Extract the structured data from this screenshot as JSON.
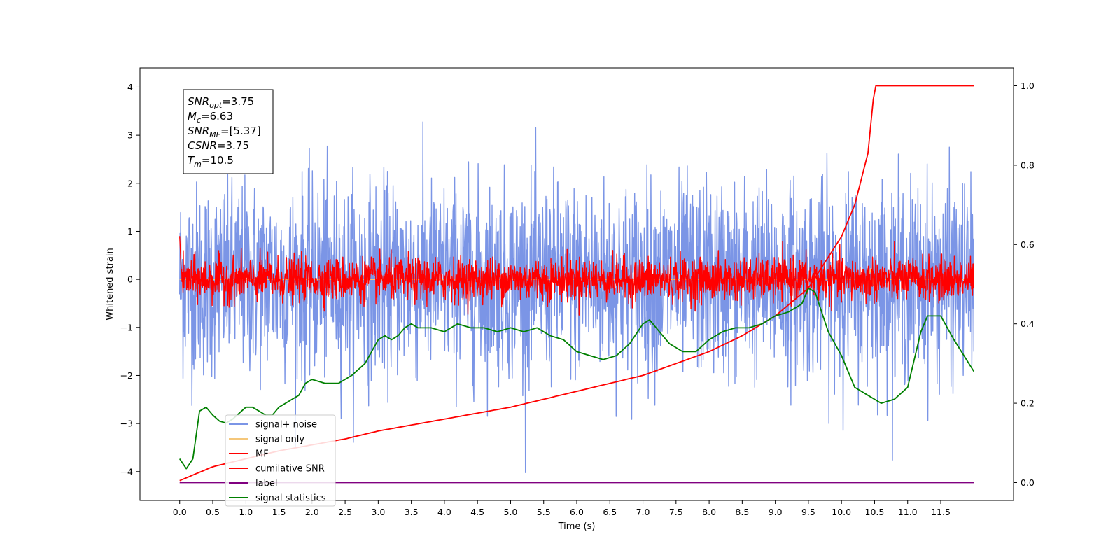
{
  "chart_data": {
    "type": "line",
    "xlabel": "Time (s)",
    "ylabel": "Whitened strain",
    "xlim": [
      -0.6,
      12.6
    ],
    "ylim": [
      -4.6,
      4.4
    ],
    "y2lim": [
      -0.045,
      1.045
    ],
    "xticks": [
      0.0,
      0.5,
      1.0,
      1.5,
      2.0,
      2.5,
      3.0,
      3.5,
      4.0,
      4.5,
      5.0,
      5.5,
      6.0,
      6.5,
      7.0,
      7.5,
      8.0,
      8.5,
      9.0,
      9.5,
      10.0,
      10.5,
      11.0,
      11.5
    ],
    "xtick_labels": [
      "0.0",
      "0.5",
      "1.0",
      "1.5",
      "2.0",
      "2.5",
      "3.0",
      "3.5",
      "4.0",
      "4.5",
      "5.0",
      "5.5",
      "6.0",
      "6.5",
      "7.0",
      "7.5",
      "8.0",
      "8.5",
      "9.0",
      "9.5",
      "10.0",
      "10.5",
      "11.0",
      "11.5"
    ],
    "yticks": [
      -4,
      -3,
      -2,
      -1,
      0,
      1,
      2,
      3,
      4
    ],
    "ytick_labels": [
      "−4",
      "−3",
      "−2",
      "−1",
      "0",
      "1",
      "2",
      "3",
      "4"
    ],
    "y2ticks": [
      0.0,
      0.2,
      0.4,
      0.6,
      0.8,
      1.0
    ],
    "y2tick_labels": [
      "0.0",
      "0.2",
      "0.4",
      "0.6",
      "0.8",
      "1.0"
    ],
    "legend_position": "lower-left",
    "annotation": {
      "lines": [
        {
          "var": "SNR",
          "sub": "opt",
          "value": "=3.75"
        },
        {
          "var": "M",
          "sub": "c",
          "value": "=6.63"
        },
        {
          "var": "SNR",
          "sub": "MF",
          "value": "=[5.37]"
        },
        {
          "var": "CSNR",
          "sub": "",
          "value": "=3.75"
        },
        {
          "var": "T",
          "sub": "m",
          "value": "=10.5"
        }
      ]
    },
    "series": [
      {
        "name": "signal+ noise",
        "color": "#7b95e6",
        "axis": "left",
        "style": "noise",
        "x_range": [
          0,
          12
        ],
        "spread": 1.0,
        "offset": 0.0
      },
      {
        "name": "signal only",
        "color": "#f5c77a",
        "axis": "left",
        "style": "flat",
        "x_range": [
          0,
          12
        ],
        "value": 0.0
      },
      {
        "name": "MF",
        "color": "#ff0000",
        "axis": "left",
        "style": "noise",
        "x_range": [
          0,
          12
        ],
        "spread": 0.22,
        "offset": 0.0
      },
      {
        "name": "cumilative SNR",
        "color": "#ff0000",
        "axis": "right",
        "x": [
          0.0,
          0.5,
          1.0,
          1.5,
          2.0,
          2.5,
          3.0,
          3.5,
          4.0,
          4.5,
          5.0,
          5.5,
          6.0,
          6.5,
          7.0,
          7.5,
          8.0,
          8.5,
          9.0,
          9.5,
          10.0,
          10.2,
          10.4,
          10.5,
          12.0
        ],
        "y": [
          0.005,
          0.04,
          0.06,
          0.08,
          0.095,
          0.11,
          0.13,
          0.145,
          0.16,
          0.175,
          0.19,
          0.21,
          0.23,
          0.25,
          0.27,
          0.3,
          0.33,
          0.37,
          0.42,
          0.49,
          0.62,
          0.7,
          0.83,
          1.0,
          1.0
        ]
      },
      {
        "name": "label",
        "color": "#800080",
        "axis": "right",
        "x": [
          0.0,
          12.0
        ],
        "y": [
          0.0,
          0.0
        ]
      },
      {
        "name": "signal statistics",
        "color": "#008000",
        "axis": "right",
        "x": [
          0.0,
          0.1,
          0.2,
          0.3,
          0.4,
          0.5,
          0.6,
          0.7,
          0.8,
          0.9,
          1.0,
          1.1,
          1.2,
          1.3,
          1.4,
          1.5,
          1.6,
          1.7,
          1.8,
          1.9,
          2.0,
          2.2,
          2.4,
          2.6,
          2.8,
          3.0,
          3.1,
          3.2,
          3.3,
          3.4,
          3.5,
          3.6,
          3.8,
          4.0,
          4.2,
          4.4,
          4.6,
          4.8,
          5.0,
          5.2,
          5.4,
          5.6,
          5.8,
          6.0,
          6.2,
          6.4,
          6.6,
          6.8,
          7.0,
          7.1,
          7.2,
          7.4,
          7.6,
          7.8,
          8.0,
          8.2,
          8.4,
          8.6,
          8.8,
          9.0,
          9.2,
          9.4,
          9.5,
          9.6,
          9.8,
          10.0,
          10.2,
          10.4,
          10.6,
          10.8,
          11.0,
          11.2,
          11.3,
          11.5,
          11.7,
          12.0
        ],
        "y": [
          0.06,
          0.035,
          0.06,
          0.18,
          0.19,
          0.17,
          0.155,
          0.15,
          0.16,
          0.175,
          0.19,
          0.19,
          0.18,
          0.17,
          0.17,
          0.19,
          0.2,
          0.21,
          0.22,
          0.25,
          0.26,
          0.25,
          0.25,
          0.27,
          0.3,
          0.36,
          0.37,
          0.36,
          0.37,
          0.39,
          0.4,
          0.39,
          0.39,
          0.38,
          0.4,
          0.39,
          0.39,
          0.38,
          0.39,
          0.38,
          0.39,
          0.37,
          0.36,
          0.33,
          0.32,
          0.31,
          0.32,
          0.35,
          0.4,
          0.41,
          0.39,
          0.35,
          0.33,
          0.33,
          0.36,
          0.38,
          0.39,
          0.39,
          0.4,
          0.42,
          0.43,
          0.45,
          0.49,
          0.48,
          0.38,
          0.32,
          0.24,
          0.22,
          0.2,
          0.21,
          0.24,
          0.38,
          0.42,
          0.42,
          0.36,
          0.28
        ]
      }
    ]
  }
}
